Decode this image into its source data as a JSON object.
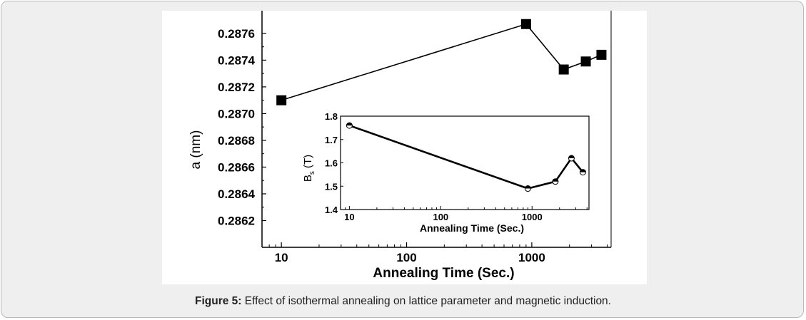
{
  "figure": {
    "caption_label": "Figure 5:",
    "caption_text": " Effect of isothermal annealing on lattice parameter and magnetic induction."
  },
  "chart_data": [
    {
      "type": "line",
      "role": "main",
      "xscale": "log",
      "xlabel": "Annealing Time (Sec.)",
      "ylabel": "a (nm)",
      "xlim": [
        7,
        4300
      ],
      "ylim": [
        0.286,
        0.28777
      ],
      "xticks": [
        10,
        100,
        1000
      ],
      "xtick_labels": [
        "10",
        "100",
        "1000"
      ],
      "yticks": [
        0.2862,
        0.2864,
        0.2866,
        0.2868,
        0.287,
        0.2872,
        0.2874,
        0.2876
      ],
      "ytick_labels": [
        "0.2862",
        "0.2864",
        "0.2866",
        "0.2868",
        "0.2870",
        "0.2872",
        "0.2874",
        "0.2876"
      ],
      "marker": "filled-square",
      "x": [
        10,
        900,
        1800,
        2700,
        3600
      ],
      "y": [
        0.2871,
        0.28767,
        0.28733,
        0.28739,
        0.28744
      ]
    },
    {
      "type": "line",
      "role": "inset",
      "xscale": "log",
      "xlabel": "Annealing Time (Sec.)",
      "ylabel": "B",
      "ylabel_sub": "s",
      "ylabel_unit": " (T)",
      "xlim": [
        8,
        4200
      ],
      "ylim": [
        1.4,
        1.8
      ],
      "xticks": [
        10,
        100,
        1000
      ],
      "xtick_labels": [
        "10",
        "100",
        "1000"
      ],
      "yticks": [
        1.4,
        1.5,
        1.6,
        1.7,
        1.8
      ],
      "ytick_labels": [
        "1.4",
        "1.5",
        "1.6",
        "1.7",
        "1.8"
      ],
      "marker": "half-filled-circle",
      "x": [
        10,
        900,
        1800,
        2700,
        3600
      ],
      "y": [
        1.76,
        1.49,
        1.52,
        1.62,
        1.56
      ]
    }
  ]
}
